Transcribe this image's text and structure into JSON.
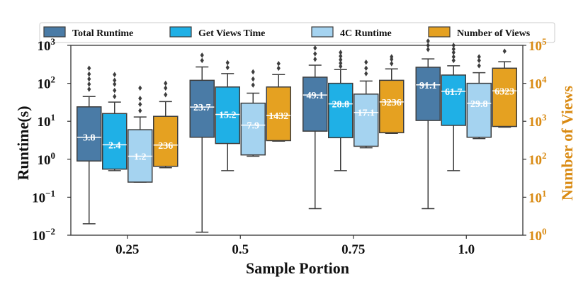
{
  "chart_data": {
    "type": "box",
    "xlabel": "Sample Portion",
    "ylabel_left": "Runtime(s)",
    "ylabel_right": "Number of Views",
    "categories": [
      "0.25",
      "0.5",
      "0.75",
      "1.0"
    ],
    "y_left_scale": "log",
    "y_left_range": [
      0.01,
      1000
    ],
    "y_left_ticks": [
      {
        "base": "10",
        "exp": "−2"
      },
      {
        "base": "10",
        "exp": "−1"
      },
      {
        "base": "10",
        "exp": "0"
      },
      {
        "base": "10",
        "exp": "1"
      },
      {
        "base": "10",
        "exp": "2"
      },
      {
        "base": "10",
        "exp": "3"
      }
    ],
    "y_right_scale": "log",
    "y_right_range": [
      1,
      100000
    ],
    "y_right_ticks": [
      {
        "base": "10",
        "exp": "0"
      },
      {
        "base": "10",
        "exp": "1"
      },
      {
        "base": "10",
        "exp": "2"
      },
      {
        "base": "10",
        "exp": "3"
      },
      {
        "base": "10",
        "exp": "4"
      },
      {
        "base": "10",
        "exp": "5"
      }
    ],
    "legend_position": "top",
    "series": [
      {
        "name": "Total Runtime",
        "axis": "left",
        "color": "#4a7ba6",
        "boxes": [
          {
            "whislo": 0.02,
            "q1": 0.9,
            "med": 3.8,
            "q3": 24,
            "whishi": 45,
            "label": "3.8",
            "fliers": [
              70,
              95,
              130,
              175,
              250
            ]
          },
          {
            "whislo": 0.012,
            "q1": 3.8,
            "med": 23.7,
            "q3": 120,
            "whishi": 270,
            "label": "23.7",
            "fliers": [
              400,
              550
            ]
          },
          {
            "whislo": 0.05,
            "q1": 5.5,
            "med": 49.1,
            "q3": 145,
            "whishi": 300,
            "label": "49.1",
            "fliers": [
              430,
              600,
              850
            ]
          },
          {
            "whislo": 0.05,
            "q1": 10.5,
            "med": 91.1,
            "q3": 265,
            "whishi": 440,
            "label": "91.1",
            "fliers": [
              780,
              1000,
              1300
            ]
          }
        ]
      },
      {
        "name": "Get Views Time",
        "axis": "left",
        "color": "#1fb0e6",
        "boxes": [
          {
            "whislo": 0.5,
            "q1": 0.55,
            "med": 2.4,
            "q3": 16,
            "whishi": 32,
            "label": "2.4",
            "fliers": [
              45,
              65,
              95,
              120,
              170
            ]
          },
          {
            "whislo": 0.5,
            "q1": 2.6,
            "med": 15.2,
            "q3": 80,
            "whishi": 180,
            "label": "15.2",
            "fliers": [
              260,
              350
            ]
          },
          {
            "whislo": 0.5,
            "q1": 3.7,
            "med": 28.8,
            "q3": 100,
            "whishi": 230,
            "label": "28.8",
            "fliers": [
              280,
              340,
              420,
              520,
              650
            ]
          },
          {
            "whislo": 0.5,
            "q1": 7.8,
            "med": 61.7,
            "q3": 165,
            "whishi": 290,
            "label": "61.7",
            "fliers": [
              400,
              500,
              650,
              800,
              1000
            ]
          }
        ]
      },
      {
        "name": "4C Runtime",
        "axis": "left",
        "color": "#a5d3f0",
        "boxes": [
          {
            "whislo": 0.25,
            "q1": 0.25,
            "med": 1.2,
            "q3": 6,
            "whishi": 13,
            "label": "1.2",
            "fliers": [
              19,
              28,
              40,
              75
            ]
          },
          {
            "whislo": 1.2,
            "q1": 1.3,
            "med": 7.9,
            "q3": 30,
            "whishi": 55,
            "label": "7.9",
            "fliers": [
              90,
              130,
              200
            ]
          },
          {
            "whislo": 2.0,
            "q1": 2.2,
            "med": 17.1,
            "q3": 52,
            "whishi": 115,
            "label": "17.1",
            "fliers": [
              180,
              250,
              360
            ]
          },
          {
            "whislo": 3.5,
            "q1": 3.8,
            "med": 29.8,
            "q3": 100,
            "whishi": 190,
            "label": "29.8",
            "fliers": [
              290,
              400,
              500
            ]
          }
        ]
      },
      {
        "name": "Number of Views",
        "axis": "right",
        "color": "#e5a121",
        "boxes": [
          {
            "whislo": 60,
            "q1": 65,
            "med": 236,
            "q3": 1350,
            "whishi": 3300,
            "label": "236",
            "fliers": [
              5000,
              7500,
              10000
            ]
          },
          {
            "whislo": 300,
            "q1": 310,
            "med": 1432,
            "q3": 8000,
            "whishi": 17000,
            "label": "1432",
            "fliers": [
              25000,
              33000
            ]
          },
          {
            "whislo": 480,
            "q1": 500,
            "med": 3236,
            "q3": 12000,
            "whishi": 24000,
            "label": "3236",
            "fliers": [
              33000,
              43000,
              50000
            ]
          },
          {
            "whislo": 700,
            "q1": 730,
            "med": 6323,
            "q3": 25000,
            "whishi": 37000,
            "label": "6323",
            "fliers": [
              70000
            ]
          }
        ]
      }
    ]
  }
}
